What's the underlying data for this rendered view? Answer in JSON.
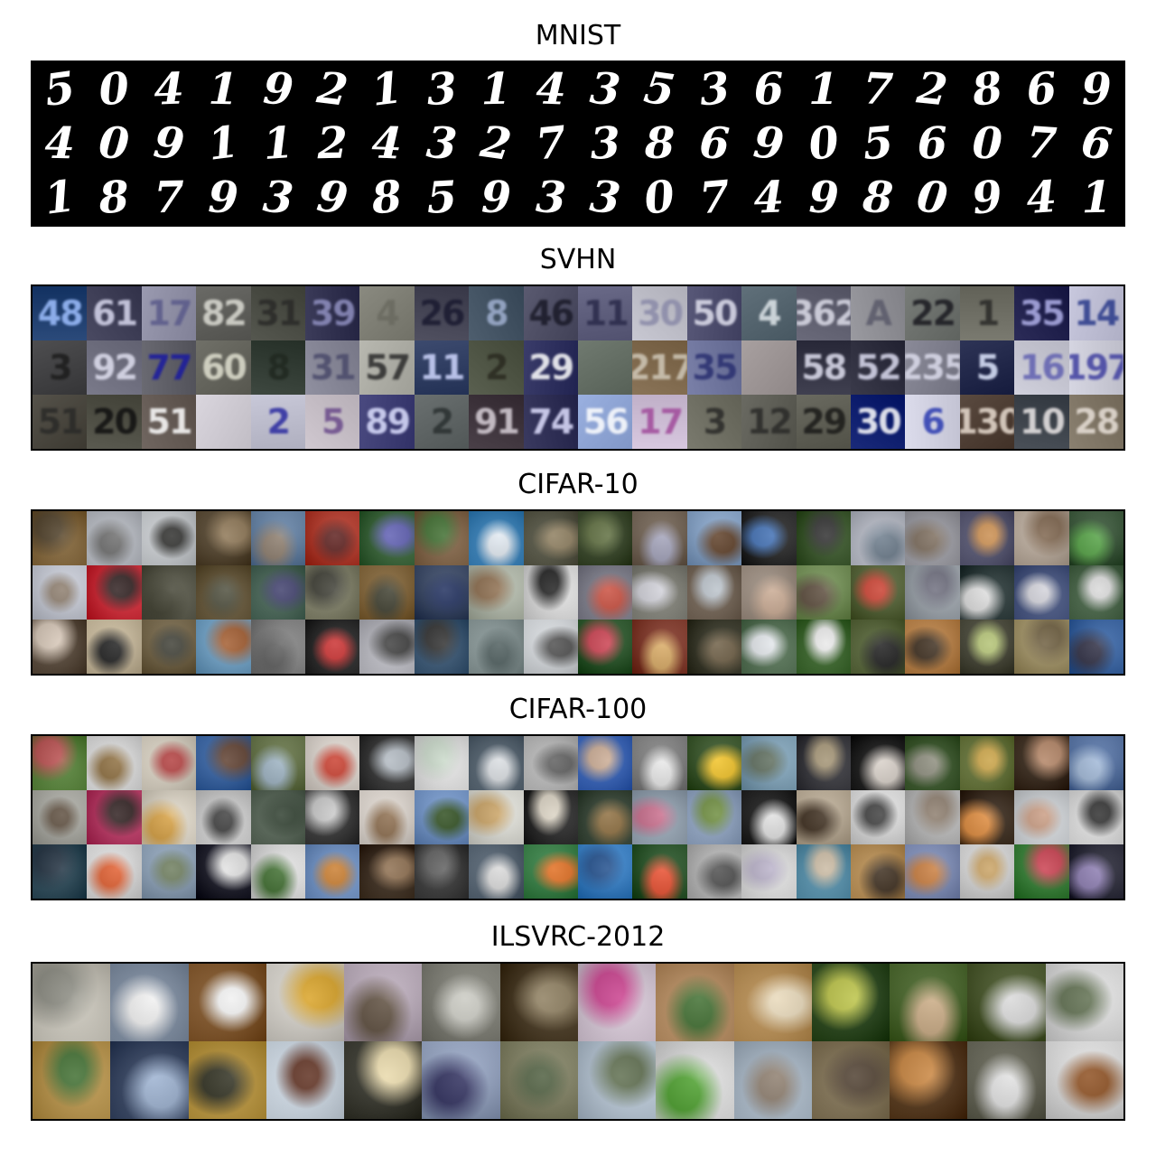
{
  "figure": {
    "panels": [
      {
        "id": "mnist",
        "title": "MNIST",
        "rows": 3,
        "cols": 20,
        "kind": "digits",
        "digits": [
          "5",
          "0",
          "4",
          "1",
          "9",
          "2",
          "1",
          "3",
          "1",
          "4",
          "3",
          "5",
          "3",
          "6",
          "1",
          "7",
          "2",
          "8",
          "6",
          "9",
          "4",
          "0",
          "9",
          "1",
          "1",
          "2",
          "4",
          "3",
          "2",
          "7",
          "3",
          "8",
          "6",
          "9",
          "0",
          "5",
          "6",
          "0",
          "7",
          "6",
          "1",
          "8",
          "7",
          "9",
          "3",
          "9",
          "8",
          "5",
          "9",
          "3",
          "3",
          "0",
          "7",
          "4",
          "9",
          "8",
          "0",
          "9",
          "4",
          "1"
        ]
      },
      {
        "id": "svhn",
        "title": "SVHN",
        "rows": 3,
        "cols": 20,
        "kind": "house-numbers",
        "digits": [
          "48",
          "61",
          "17",
          "82",
          "31",
          "39",
          "4",
          "26",
          "8",
          "46",
          "11",
          "30",
          "50",
          "4",
          "362",
          "A",
          "22",
          "1",
          "35",
          "14",
          "3",
          "92",
          "77",
          "60",
          "8",
          "31",
          "57",
          "11",
          "2",
          "29",
          "",
          "217",
          "35",
          "",
          "58",
          "52",
          "235",
          "5",
          "16",
          "197",
          "51",
          "20",
          "51",
          "",
          "2",
          "5",
          "89",
          "2",
          "91",
          "74",
          "56",
          "17",
          "3",
          "12",
          "29",
          "30",
          "6",
          "130",
          "10",
          "28"
        ],
        "colors": [
          "#2b4a7a",
          "#4a4a62",
          "#9a9ab0",
          "#6a6a66",
          "#55574f",
          "#3c3c5a",
          "#8a8a80",
          "#505060",
          "#4e5e6e",
          "#5a5a70",
          "#6a6a88",
          "#c8c8d2",
          "#585878",
          "#60707a",
          "#6a6a7a",
          "#9a9aa0",
          "#787c78",
          "#7a7a70",
          "#2c2c58",
          "#c8c8de",
          "#4e4e50",
          "#7a7a8a",
          "#6a6a72",
          "#707068",
          "#3e4840",
          "#9090a0",
          "#b8b8b0",
          "#3c4a6e",
          "#5a6050",
          "#3a3c6a",
          "#707a70",
          "#8a7458",
          "#7a80a8",
          "#a8a0a0",
          "#404050",
          "#3a3a4a",
          "#8a8a98",
          "#2e3456",
          "#d0d0dc",
          "#d6d6e2",
          "#55524a",
          "#5a5a50",
          "#706660",
          "#dad6de",
          "#c8c8d8",
          "#d0c8d0",
          "#4a4a80",
          "#6a7070",
          "#4a4048",
          "#3a3a60",
          "#9ab0e0",
          "#d8c8e0",
          "#7a7a6e",
          "#6a6a62",
          "#6a6a60",
          "#1a2a7a",
          "#dcdcec",
          "#5a4a40",
          "#4a5058",
          "#8a8070"
        ],
        "ink": [
          "#9fc0ff",
          "#d8d8ee",
          "#5a5a8a",
          "#dcdcd4",
          "#2a2a28",
          "#9090c0",
          "#6a6a60",
          "#1a1a30",
          "#a0b0d0",
          "#1a1a28",
          "#2a2a4a",
          "#8a8aa8",
          "#e0e0ee",
          "#dfe6ea",
          "#dcdce8",
          "#5a5a6a",
          "#1a1a20",
          "#2a2a28",
          "#b0b0e8",
          "#2a3a8a",
          "#1c1c1c",
          "#e0e0f0",
          "#1a1aa0",
          "#e0e0d0",
          "#202820",
          "#4a4a6a",
          "#2a2a2a",
          "#d0d8ff",
          "#2a2a20",
          "#ffffff",
          "#3a3a30",
          "#d0c8b8",
          "#2a3070",
          "#706060",
          "#e0e0f0",
          "#dcdcf0",
          "#dcdcec",
          "#e0e8ff",
          "#6060b0",
          "#4040a0",
          "#2a2a28",
          "#101010",
          "#ffffff",
          "#c0c0d0",
          "#2a2aa0",
          "#6a4a8a",
          "#dde0ff",
          "#2a3030",
          "#d8d0d8",
          "#e0e0ff",
          "#ffffff",
          "#a04a9a",
          "#2a2a28",
          "#2a2a28",
          "#1a1a18",
          "#ffffff",
          "#2a3ab0",
          "#e8dcd0",
          "#ece8e8",
          "#e8e0d8"
        ]
      },
      {
        "id": "cifar10",
        "title": "CIFAR-10",
        "rows": 3,
        "cols": 20,
        "kind": "photos",
        "colors": [
          [
            "#8a6a3a",
            "#4a3a22"
          ],
          [
            "#c8ccd4",
            "#6a6a6a"
          ],
          [
            "#d8dce0",
            "#2a2a28"
          ],
          [
            "#5a4a32",
            "#8a7250"
          ],
          [
            "#6a8ab0",
            "#8a7a6a"
          ],
          [
            "#c03a2a",
            "#5a1a18"
          ],
          [
            "#3a6a3a",
            "#5a5ab0"
          ],
          [
            "#8a6a4a",
            "#3a6a2a"
          ],
          [
            "#3a8ac8",
            "#e0e8f0"
          ],
          [
            "#5a5a48",
            "#8a7a5a"
          ],
          [
            "#3a4a2a",
            "#5a6a3a"
          ],
          [
            "#7a6a5a",
            "#a0a0b8"
          ],
          [
            "#90b0d8",
            "#5a3a22"
          ],
          [
            "#2a2a2a",
            "#3a6ab0"
          ],
          [
            "#3a5a2a",
            "#2a2a2a"
          ],
          [
            "#c8ccd8",
            "#6a7a8a"
          ],
          [
            "#a8a8b0",
            "#7a6a5a"
          ],
          [
            "#5a5a78",
            "#c88a4a"
          ],
          [
            "#c8b8a8",
            "#7a6048"
          ],
          [
            "#3a5a3a",
            "#50a040"
          ],
          [
            "#d8dce8",
            "#8a7a6a"
          ],
          [
            "#e02a38",
            "#2a1a1a"
          ],
          [
            "#5a5a4a",
            "#3a3a2a"
          ],
          [
            "#6a5a3a",
            "#4a4a38"
          ],
          [
            "#4a6a5a",
            "#3a3a68"
          ],
          [
            "#8a8a70",
            "#3a3a30"
          ],
          [
            "#8a6a3a",
            "#3a3a2a"
          ],
          [
            "#3a4a6a",
            "#1a2a5a"
          ],
          [
            "#c0c8b8",
            "#8a6a4a"
          ],
          [
            "#f0f0f0",
            "#1a1a1a"
          ],
          [
            "#8a8a98",
            "#c84a3a"
          ],
          [
            "#8a8a80",
            "#d0d0d8"
          ],
          [
            "#7a6a5a",
            "#b8c0c8"
          ],
          [
            "#a8988a",
            "#c8a890"
          ],
          [
            "#7a9a5a",
            "#5a4a3a"
          ],
          [
            "#5a6a3a",
            "#c83a2a"
          ],
          [
            "#a8b0b8",
            "#6a6a7a"
          ],
          [
            "#2a3a3a",
            "#e0e0e0"
          ],
          [
            "#4a5a8a",
            "#d0d0d8"
          ],
          [
            "#4a6a4a",
            "#d8d8d8"
          ],
          [
            "#5a4a3a",
            "#d8c8b8"
          ],
          [
            "#d8c8a8",
            "#1a1a1a"
          ],
          [
            "#7a6a4a",
            "#3a3a30"
          ],
          [
            "#7ab0d8",
            "#a0582a"
          ],
          [
            "#8a8a8a",
            "#5a5a5a"
          ],
          [
            "#2a2a2a",
            "#c82a2a"
          ],
          [
            "#c8c8d0",
            "#3a3a3a"
          ],
          [
            "#3a5a7a",
            "#2a2a2a"
          ],
          [
            "#90a0a0",
            "#4a5a5a"
          ],
          [
            "#e8ecf0",
            "#4a4a4a"
          ],
          [
            "#2a5a2a",
            "#c83a4a"
          ],
          [
            "#8a3a2a",
            "#d8a860"
          ],
          [
            "#3a3a2a",
            "#6a5a40"
          ],
          [
            "#5a7a5a",
            "#e0e4e8"
          ],
          [
            "#3a6a2a",
            "#e8e8e8"
          ],
          [
            "#5a6a3a",
            "#1a1a1a"
          ],
          [
            "#c88a4a",
            "#3a2a1a"
          ],
          [
            "#4a4a3a",
            "#b0c070"
          ],
          [
            "#b0a070",
            "#6a5a3a"
          ],
          [
            "#3a6ab0",
            "#2a2a40"
          ]
        ]
      },
      {
        "id": "cifar100",
        "title": "CIFAR-100",
        "rows": 3,
        "cols": 20,
        "kind": "photos",
        "colors": [
          [
            "#5a8a3a",
            "#b84a4a"
          ],
          [
            "#f0f0f0",
            "#8a6a3a"
          ],
          [
            "#e8e0d0",
            "#b03a3a"
          ],
          [
            "#3a6ab0",
            "#5a3a2a"
          ],
          [
            "#6a7a4a",
            "#9ab0c0"
          ],
          [
            "#f0e8e0",
            "#c83a2a"
          ],
          [
            "#3a3a3a",
            "#b0b8c0"
          ],
          [
            "#f4f4f4",
            "#c8d8c8"
          ],
          [
            "#5a6a78",
            "#d8dce0"
          ],
          [
            "#c8c8c8",
            "#5a5a5a"
          ],
          [
            "#3a6ac8",
            "#c8a890"
          ],
          [
            "#8a8a8a",
            "#e8e8e8"
          ],
          [
            "#3a5a2a",
            "#f0c020"
          ],
          [
            "#8ab0c8",
            "#5a6a5a"
          ],
          [
            "#3a3a40",
            "#a09070"
          ],
          [
            "#1a1a1a",
            "#d8d0c8"
          ],
          [
            "#3a5a2a",
            "#8a8a7a"
          ],
          [
            "#6a7a3a",
            "#c8a040"
          ],
          [
            "#3a2a1a",
            "#b08060"
          ],
          [
            "#5a7ab0",
            "#a0b8d8"
          ],
          [
            "#b8b8b0",
            "#5a4a3a"
          ],
          [
            "#c83a6a",
            "#2a1a1a"
          ],
          [
            "#f0e8d8",
            "#d8a040"
          ],
          [
            "#e0e0e0",
            "#3a3a3a"
          ],
          [
            "#5a6a5a",
            "#2a3a2a"
          ],
          [
            "#3a3a3a",
            "#c8c8c8"
          ],
          [
            "#f0e8e0",
            "#8a6a4a"
          ],
          [
            "#7aa0d8",
            "#2a4a1a"
          ],
          [
            "#f0f0e8",
            "#c8a060"
          ],
          [
            "#2a2a2a",
            "#d8d0c0"
          ],
          [
            "#3a4a3a",
            "#8a6a3a"
          ],
          [
            "#a0b0c0",
            "#c86a8a"
          ],
          [
            "#9ab0d0",
            "#6a8a3a"
          ],
          [
            "#1a1a1a",
            "#e0e0e0"
          ],
          [
            "#c8b8a0",
            "#3a2a1a"
          ],
          [
            "#f0f0f0",
            "#3a3a3a"
          ],
          [
            "#c8c8c8",
            "#8a7a6a"
          ],
          [
            "#3a2a1a",
            "#e08a3a"
          ],
          [
            "#e0e4e8",
            "#c89a80"
          ],
          [
            "#f0f0f0",
            "#2a2a2a"
          ],
          [
            "#2a4a5a",
            "#1a2a3a"
          ],
          [
            "#f0f0f0",
            "#e05a2a"
          ],
          [
            "#9ab0c8",
            "#6a7a5a"
          ],
          [
            "#1a1a2a",
            "#e0e0e0"
          ],
          [
            "#f0f0f0",
            "#3a6a2a"
          ],
          [
            "#7aa0d8",
            "#c87a2a"
          ],
          [
            "#3a2a1a",
            "#8a6a4a"
          ],
          [
            "#3a3a3a",
            "#5a5a5a"
          ],
          [
            "#5a6a7a",
            "#d8d8d8"
          ],
          [
            "#3a8a4a",
            "#e06a1a"
          ],
          [
            "#3a8ad8",
            "#1a4a8a"
          ],
          [
            "#2a5a2a",
            "#e84a2a"
          ],
          [
            "#c8c8c8",
            "#4a4a4a"
          ],
          [
            "#f0f0f0",
            "#b8b0c8"
          ],
          [
            "#5a9ab8",
            "#c8b8a0"
          ],
          [
            "#c89a5a",
            "#3a2a1a"
          ],
          [
            "#8a9ac8",
            "#c87a3a"
          ],
          [
            "#e8e8e8",
            "#c8a060"
          ],
          [
            "#3a8a3a",
            "#c83a4a"
          ],
          [
            "#2a2a3a",
            "#8a7ab0"
          ]
        ]
      },
      {
        "id": "ilsvrc",
        "title": "ILSVRC-2012",
        "rows": 2,
        "cols": 14,
        "kind": "photos",
        "colors": [
          [
            "#d8d4c8",
            "#8a8a80"
          ],
          [
            "#8a9ab0",
            "#f0f0f0"
          ],
          [
            "#8a5a2a",
            "#f0f0f0"
          ],
          [
            "#e8e4dc",
            "#d8a020"
          ],
          [
            "#c8b8c8",
            "#5a4a3a"
          ],
          [
            "#8a8a80",
            "#c8c8c0"
          ],
          [
            "#4a3a22",
            "#8a7a5a"
          ],
          [
            "#e8d8e8",
            "#c83a8a"
          ],
          [
            "#c89a6a",
            "#3a6a2a"
          ],
          [
            "#c89a5a",
            "#e8d8b8"
          ],
          [
            "#2a4a1a",
            "#b8c040"
          ],
          [
            "#4a6a2a",
            "#c8a880"
          ],
          [
            "#4a5a2a",
            "#d8d8d8"
          ],
          [
            "#f0f0f0",
            "#5a6a4a"
          ],
          [
            "#c8a050",
            "#3a6a2a"
          ],
          [
            "#3a4a6a",
            "#9ab0d0"
          ],
          [
            "#c8a040",
            "#2a2a1a"
          ],
          [
            "#e0ecf8",
            "#5a2a1a"
          ],
          [
            "#3a3a30",
            "#e8d8a8"
          ],
          [
            "#a0b0d0",
            "#2a2a5a"
          ],
          [
            "#8a8a6a",
            "#4a5a3a"
          ],
          [
            "#c8d8e8",
            "#5a6a4a"
          ],
          [
            "#f0f0f0",
            "#4aa02a"
          ],
          [
            "#b8c8d8",
            "#8a7a6a"
          ],
          [
            "#8a7a5a",
            "#4a3a2a"
          ],
          [
            "#5a3a1a",
            "#c8823a"
          ],
          [
            "#6a6a5a",
            "#e0e0e0"
          ],
          [
            "#f0f0f0",
            "#8a4a1a"
          ]
        ]
      }
    ]
  }
}
